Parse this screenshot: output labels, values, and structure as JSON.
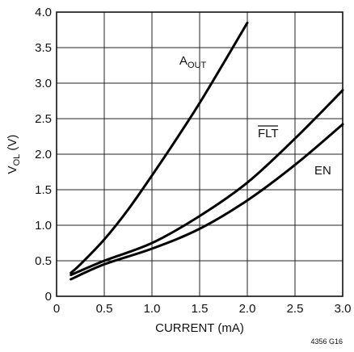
{
  "chart_data": {
    "type": "line",
    "title": "",
    "xlabel": "CURRENT (mA)",
    "ylabel": {
      "main": "V",
      "sub": "OL",
      "unit": " (V)"
    },
    "xlim": [
      0,
      3.0
    ],
    "ylim": [
      0,
      4.0
    ],
    "x_ticks": [
      0,
      0.5,
      1.0,
      1.5,
      2.0,
      2.5,
      3.0
    ],
    "x_tick_labels": [
      "0",
      "0.5",
      "1.0",
      "1.5",
      "2.0",
      "2.5",
      "3.0"
    ],
    "y_ticks": [
      0,
      0.5,
      1.0,
      1.5,
      2.0,
      2.5,
      3.0,
      3.5,
      4.0
    ],
    "y_tick_labels": [
      "0",
      "0.5",
      "1.0",
      "1.5",
      "2.0",
      "2.5",
      "3.0",
      "3.5",
      "4.0"
    ],
    "grid": true,
    "series": [
      {
        "name": "AOUT",
        "label_main": "A",
        "label_sub": "OUT",
        "points": [
          [
            0.15,
            0.33
          ],
          [
            0.25,
            0.45
          ],
          [
            0.5,
            0.8
          ],
          [
            0.75,
            1.22
          ],
          [
            1.0,
            1.7
          ],
          [
            1.25,
            2.2
          ],
          [
            1.5,
            2.72
          ],
          [
            1.75,
            3.28
          ],
          [
            2.0,
            3.85
          ]
        ]
      },
      {
        "name": "FLT",
        "label_main": "FLT",
        "label_overline": true,
        "points": [
          [
            0.15,
            0.3
          ],
          [
            0.5,
            0.5
          ],
          [
            1.0,
            0.75
          ],
          [
            1.5,
            1.13
          ],
          [
            2.0,
            1.6
          ],
          [
            2.5,
            2.22
          ],
          [
            3.0,
            2.9
          ]
        ]
      },
      {
        "name": "EN",
        "label_main": "EN",
        "points": [
          [
            0.15,
            0.24
          ],
          [
            0.5,
            0.45
          ],
          [
            1.0,
            0.67
          ],
          [
            1.5,
            0.95
          ],
          [
            2.0,
            1.35
          ],
          [
            2.5,
            1.85
          ],
          [
            3.0,
            2.42
          ]
        ]
      }
    ]
  },
  "figure_id": "4356 G16"
}
